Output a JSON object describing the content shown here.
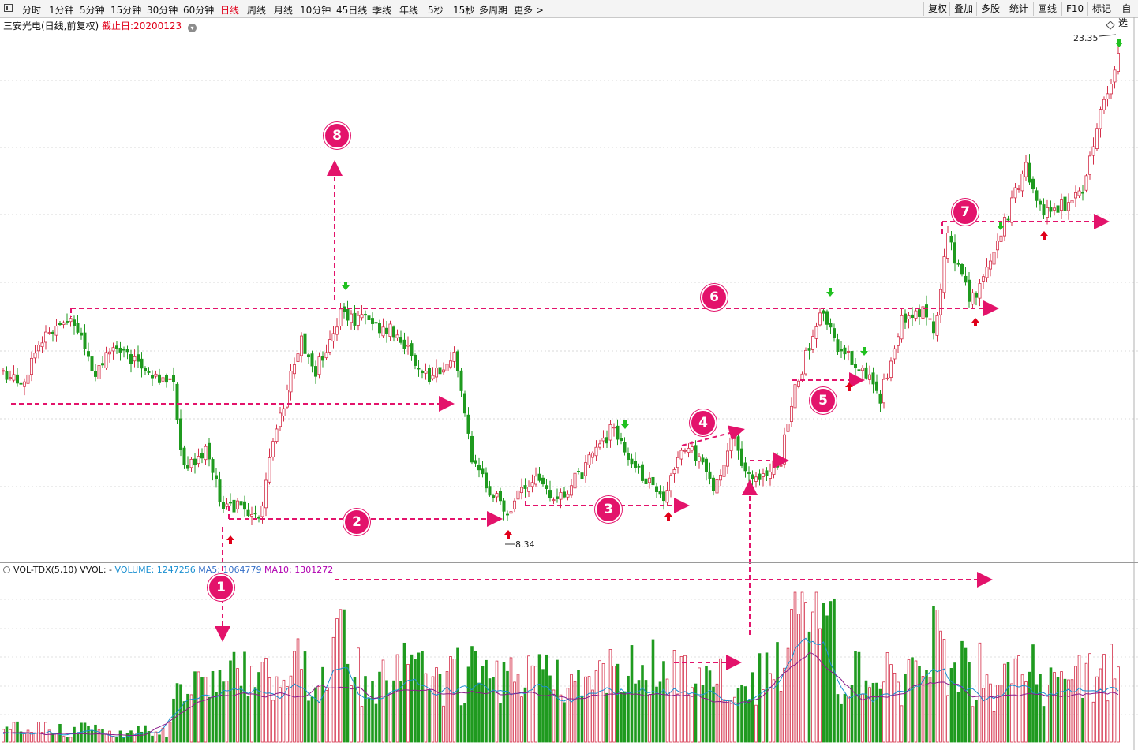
{
  "toolbar": {
    "left_items": [
      "分时",
      "1分钟",
      "5分钟",
      "15分钟",
      "30分钟",
      "60分钟",
      "日线",
      "周线",
      "月线",
      "10分钟",
      "45日线",
      "季线",
      "年线",
      "5秒",
      "15秒",
      "多周期",
      "更多 >"
    ],
    "active": "日线",
    "right_items": [
      "复权",
      "叠加",
      "多股",
      "统计",
      "画线",
      "F10",
      "标记",
      "-自选"
    ]
  },
  "chart_title": {
    "name": "三安光电(日线,前复权)",
    "date_label": "截止日:20200123"
  },
  "volume_header": {
    "name": "VOL-TDX(5,10)",
    "vvol": "VVOL: -",
    "volume": "VOLUME: 1247256",
    "ma5": "MA5: 1064779",
    "ma10": "MA10: 1301272"
  },
  "price_labels": {
    "high": "23.35",
    "low": "8.34"
  },
  "annotations": [
    "1",
    "2",
    "3",
    "4",
    "5",
    "6",
    "7",
    "8"
  ],
  "colors": {
    "up": "#d4304a",
    "down": "#1f9a1f",
    "annotation": "#e3136b",
    "ma5": "#1a8fd0",
    "ma10": "#8b1c8b"
  }
}
